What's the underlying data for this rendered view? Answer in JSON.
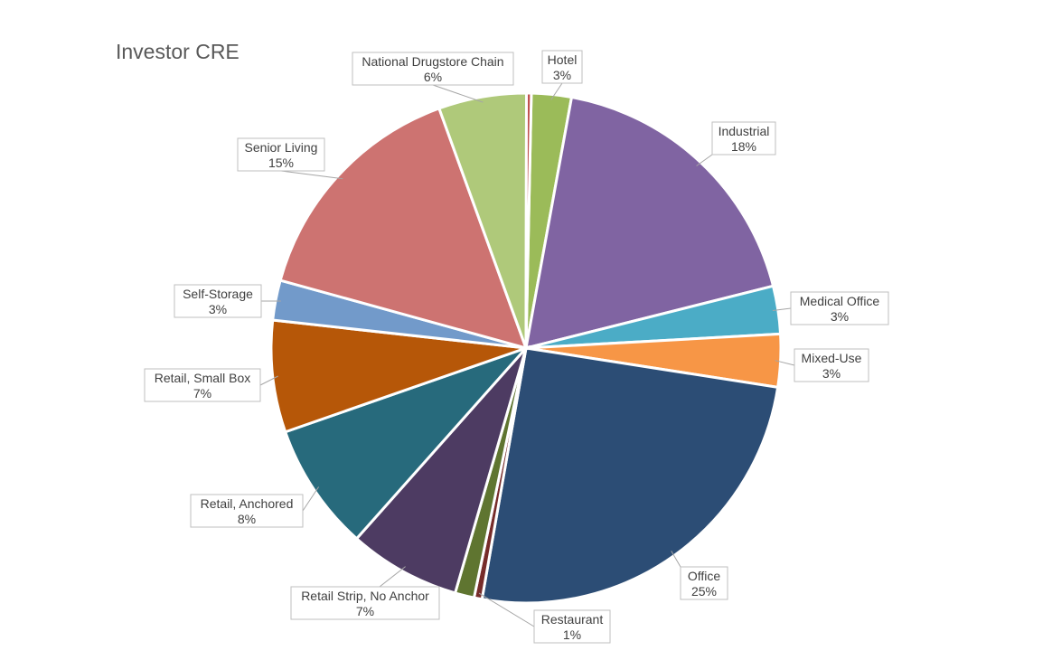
{
  "chart_data": {
    "type": "pie",
    "title": "Investor CRE",
    "slices": [
      {
        "name": "Hotel",
        "value": 2.5,
        "label": "3%",
        "color": "#9bbb59"
      },
      {
        "name": "Industrial",
        "value": 18,
        "label": "18%",
        "color": "#8064a2"
      },
      {
        "name": "Medical Office",
        "value": 3,
        "label": "3%",
        "color": "#4bacc6"
      },
      {
        "name": "Mixed-Use",
        "value": 3.3,
        "label": "3%",
        "color": "#f79646"
      },
      {
        "name": "Office",
        "value": 25,
        "label": "25%",
        "color": "#2c4d75"
      },
      {
        "name": "Restaurant",
        "value": 0.5,
        "label": "1%",
        "color": "#772c2a"
      },
      {
        "name": "",
        "value": 1.2,
        "label": "",
        "color": "#5f7530"
      },
      {
        "name": "Retail Strip, No Anchor",
        "value": 7,
        "label": "7%",
        "color": "#4d3b62"
      },
      {
        "name": "Retail, Anchored",
        "value": 8,
        "label": "8%",
        "color": "#276a7c"
      },
      {
        "name": "Retail, Small Box",
        "value": 7,
        "label": "7%",
        "color": "#b65708"
      },
      {
        "name": "Self-Storage",
        "value": 2.5,
        "label": "3%",
        "color": "#729aca"
      },
      {
        "name": "Senior Living",
        "value": 15,
        "label": "15%",
        "color": "#cd7371"
      },
      {
        "name": "National Drugstore Chain",
        "value": 5.5,
        "label": "6%",
        "color": "#afc97a"
      },
      {
        "name": "",
        "value": 0.3,
        "label": "",
        "color": "#c0504d"
      }
    ],
    "legend": "none",
    "data_labels": "outside-with-leaders"
  }
}
